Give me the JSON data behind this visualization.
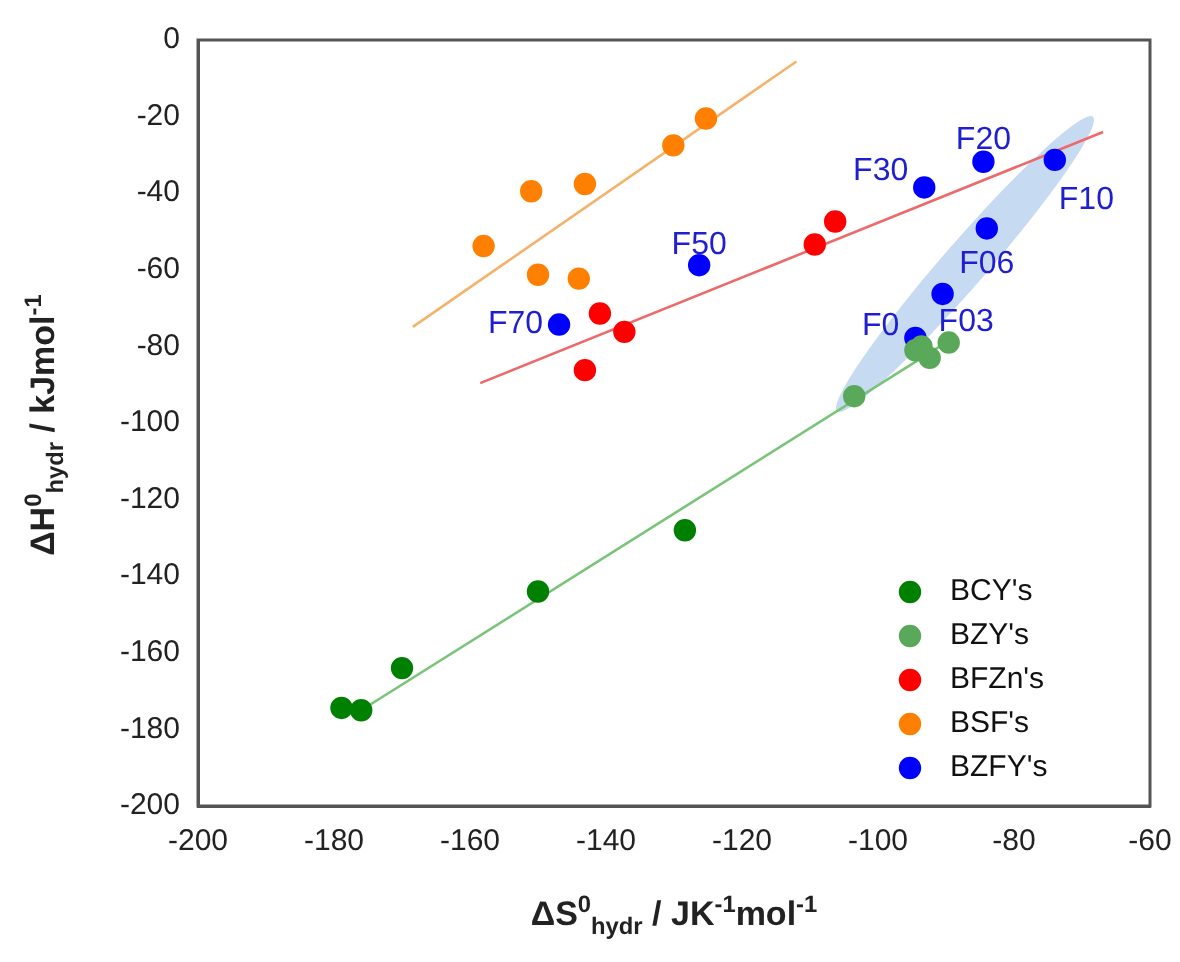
{
  "chart_data": {
    "type": "scatter",
    "xlabel": "ΔS$^{0}$$_{hydr}$ / JK$^{-1}$mol$^{-1}$",
    "ylabel": "ΔH$^{0}$$_{hydr}$ / kJmol$^{-1}$",
    "xlim": [
      -200,
      -60
    ],
    "xticks": [
      -200,
      -180,
      -160,
      -140,
      -120,
      -100,
      -80,
      -60
    ],
    "ylim": [
      -200,
      0
    ],
    "yticks": [
      -200,
      -180,
      -160,
      -140,
      -120,
      -100,
      -80,
      -60,
      -40,
      -20,
      0
    ],
    "grid": false,
    "legend": "bottom right",
    "series": [
      {
        "name": "BCY's",
        "color": "#008000",
        "marker": "circle",
        "x": [
          -178.9,
          -176,
          -170,
          -150,
          -128.4
        ],
        "values": [
          -174.4,
          -175,
          -164,
          -144,
          -128
        ]
      },
      {
        "name": "BZY's",
        "color": "#5aa85a",
        "marker": "circle",
        "x": [
          -103.5,
          -94.5,
          -93.6,
          -92.4,
          -89.6
        ],
        "values": [
          -93,
          -81,
          -80,
          -83,
          -79
        ]
      },
      {
        "name": "BFZn's",
        "color": "#ff0000",
        "marker": "circle",
        "x": [
          -106.3,
          -109.3,
          -140.9,
          -137.3,
          -143.1
        ],
        "values": [
          -47.4,
          -53.4,
          -71.4,
          -76.2,
          -86.2
        ]
      },
      {
        "name": "BSF's",
        "color": "#ff8000",
        "marker": "circle",
        "x": [
          -158,
          -151,
          -143.1,
          -130.1,
          -125.3,
          -150,
          -144
        ],
        "values": [
          -53.8,
          -39.5,
          -37.6,
          -27.5,
          -20.5,
          -61.3,
          -62.3
        ]
      },
      {
        "name": "BZFY's",
        "color": "#0000ff",
        "marker": "circle",
        "x": [
          -146.9,
          -126.3,
          -93.2,
          -84.5,
          -74,
          -84,
          -90.5,
          -94.5
        ],
        "values": [
          -74.3,
          -58.8,
          -38.5,
          -31.8,
          -31.3,
          -49.2,
          -66.3,
          -77.8
        ]
      },
      {
        "type": "line",
        "marker": "none",
        "color": "#79c479",
        "x": [
          -176,
          -90
        ],
        "values": [
          -175,
          -79
        ]
      },
      {
        "type": "line",
        "marker": "none",
        "color": "#f5b26b",
        "x": [
          -168.4,
          -112
        ],
        "values": [
          -74.9,
          -5.6
        ]
      },
      {
        "type": "line",
        "marker": "none",
        "color": "#ec6a6a",
        "x": [
          -158.5,
          -66.9
        ],
        "values": [
          -89.6,
          -24
        ]
      }
    ],
    "annotations": [
      {
        "text": "F70",
        "x": -146.9,
        "y": -74.3
      },
      {
        "text": "F50",
        "x": -126.3,
        "y": -58.8
      },
      {
        "text": "F30",
        "x": -93.2,
        "y": -38.5
      },
      {
        "text": "F20",
        "x": -84.5,
        "y": -31.8
      },
      {
        "text": "F10",
        "x": -74,
        "y": -31.3
      },
      {
        "text": "F06",
        "x": -84,
        "y": -49.2
      },
      {
        "text": "F03",
        "x": -90.5,
        "y": -66.3
      },
      {
        "text": "F0",
        "x": -94.5,
        "y": -77.8
      }
    ]
  }
}
